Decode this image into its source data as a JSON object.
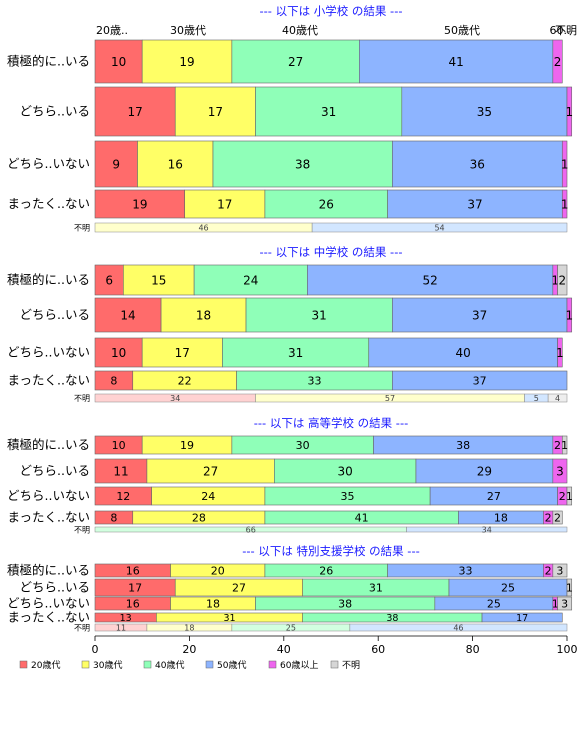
{
  "chart_data": {
    "type": "bar",
    "orientation": "horizontal-stacked-percent",
    "xlim": [
      0,
      100
    ],
    "x_ticks": [
      0,
      20,
      40,
      60,
      80,
      100
    ],
    "legend_position": "bottom-left",
    "grid": false,
    "unknown_row_label": "不明",
    "series": [
      {
        "name": "20歳代",
        "color": "#FF6B6B"
      },
      {
        "name": "30歳代",
        "color": "#FFFF66"
      },
      {
        "name": "40歳代",
        "color": "#8FFFB8"
      },
      {
        "name": "50歳代",
        "color": "#8DB4FF"
      },
      {
        "name": "60歳以上",
        "color": "#EE66EE"
      },
      {
        "name": "不明",
        "color": "#D6D6D6"
      }
    ],
    "unknown_colors": [
      "#FFD2D2",
      "#FFFFCC",
      "#D2FFE0",
      "#D2E6FF",
      "#F8D2F8",
      "#EEEEEE"
    ],
    "top_labels": [
      "20歳..",
      "30歳代",
      "40歳代",
      "50歳代",
      "60..",
      "不明"
    ],
    "panels": [
      {
        "title": "--- 以下は 小学校 の結果 ---",
        "rows": [
          {
            "label": "積極的に..いる",
            "values": [
              10,
              19,
              27,
              41,
              2,
              0
            ]
          },
          {
            "label": "どちら..いる",
            "values": [
              17,
              17,
              31,
              35,
              1,
              0
            ]
          },
          {
            "label": "どちら..いない",
            "values": [
              9,
              16,
              38,
              36,
              1,
              0
            ]
          },
          {
            "label": "まったく..ない",
            "values": [
              19,
              17,
              26,
              37,
              1,
              0
            ]
          }
        ],
        "unknown": {
          "values": [
            0,
            46,
            0,
            54,
            0,
            0
          ],
          "labels": [
            "",
            "46",
            "",
            "54",
            "",
            ""
          ]
        }
      },
      {
        "title": "--- 以下は 中学校 の結果 ---",
        "rows": [
          {
            "label": "積極的に..いる",
            "values": [
              6,
              15,
              24,
              52,
              1,
              2
            ]
          },
          {
            "label": "どちら..いる",
            "values": [
              14,
              18,
              31,
              37,
              1,
              0
            ]
          },
          {
            "label": "どちら..いない",
            "values": [
              10,
              17,
              31,
              40,
              1,
              0
            ]
          },
          {
            "label": "まったく..ない",
            "values": [
              8,
              22,
              33,
              37,
              0,
              0
            ]
          }
        ],
        "unknown": {
          "values": [
            34,
            57,
            0,
            5,
            0,
            4
          ],
          "labels": [
            "34",
            "57",
            "",
            "5",
            "",
            "4"
          ]
        }
      },
      {
        "title": "--- 以下は 高等学校 の結果 ---",
        "rows": [
          {
            "label": "積極的に..いる",
            "values": [
              10,
              19,
              30,
              38,
              2,
              1
            ]
          },
          {
            "label": "どちら..いる",
            "values": [
              11,
              27,
              30,
              29,
              3,
              0
            ]
          },
          {
            "label": "どちら..いない",
            "values": [
              12,
              24,
              35,
              27,
              2,
              1
            ]
          },
          {
            "label": "まったく..ない",
            "values": [
              8,
              28,
              41,
              18,
              2,
              2
            ]
          }
        ],
        "unknown": {
          "values": [
            0,
            0,
            66,
            34,
            0,
            0
          ],
          "labels": [
            "",
            "",
            "66",
            "34",
            "",
            ""
          ]
        }
      },
      {
        "title": "--- 以下は 特別支援学校 の結果 ---",
        "rows": [
          {
            "label": "積極的に..いる",
            "values": [
              16,
              20,
              26,
              33,
              2,
              3
            ]
          },
          {
            "label": "どちら..いる",
            "values": [
              17,
              27,
              31,
              25,
              0,
              1
            ]
          },
          {
            "label": "どちら..いない",
            "values": [
              16,
              18,
              38,
              25,
              1,
              3
            ]
          },
          {
            "label": "まったく..ない",
            "values": [
              13,
              31,
              38,
              17,
              0,
              0
            ]
          }
        ],
        "unknown": {
          "values": [
            11,
            18,
            25,
            46,
            0,
            0
          ],
          "labels": [
            "11",
            "18",
            "25",
            "46",
            "",
            ""
          ]
        }
      }
    ]
  }
}
